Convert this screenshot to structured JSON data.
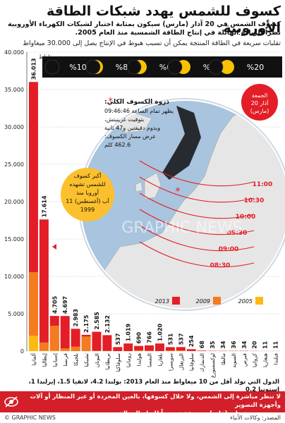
{
  "header": {
    "title": "كسوف للشمس يهدد شبكات الطاقة الأوروبية",
    "subtitle_line1": "كسوف الشمس في 20 آذار (مارس) سيكون بمثابة اختبار لشبكات الكهرباء الأوروبية",
    "subtitle_line2": "نظراً للزيادة الهائلة في إنتاج الطاقة الشمسية منذ العام 2005.",
    "subtitle_line3": "تقلبات سريعة في الطاقة المنتجة يمكن أن تسبب هبوط في الإنتاج يصل إلى 30.000 ميغاواط"
  },
  "eclipse_phases": [
    "%100",
    "%80",
    "%60",
    "%40",
    "%20"
  ],
  "map": {
    "friday_label": "الجمعة 20 آذار (مارس)",
    "peak_title": "ذروة الكسوف الكلي:",
    "peak_line1": "يظهر تمام الساعة 09:46:46",
    "peak_line2": "بتوقيت غرينيتش،",
    "peak_line3": "وبدوم دقيقتين و47 ثانية",
    "peak_line4": "عرض مسار الكسوف:",
    "peak_line5": "462.6 كلم",
    "largest_line1": "أكبر كسوف",
    "largest_line2": "للشمس تشهده",
    "largest_line3": "أوروبا منذ",
    "largest_line4": "11 آب (أغسطس)",
    "largest_line5": "1999",
    "times": [
      "11:00",
      "10:30",
      "10:00",
      "09:30",
      "09:00",
      "08:30"
    ],
    "watermark": "GRAPHIC NEWS"
  },
  "colors": {
    "bar_2013": "#e31e26",
    "bar_2009": "#f47b20",
    "bar_2005": "#fdb913",
    "sea": "#a9c4de",
    "land": "#e6e6e6",
    "phase_bg": "#111111",
    "sun": "#f9c200"
  },
  "chart_data": {
    "type": "bar",
    "unit_label": "ميغاواط",
    "ylim": [
      0,
      40000
    ],
    "yticks": [
      "0",
      "5.000",
      "10.000",
      "15.000",
      "20.000",
      "25.000",
      "30.000",
      "35.000",
      "40.000"
    ],
    "categories": [
      "ألمانيا",
      "إيطاليا",
      "إسبانيا",
      "فرنسا",
      "بلجيكا",
      "تشيكيا",
      "اليونان",
      "بريطانيا",
      "سلوفاكيا",
      "رومانيا",
      "هولندا",
      "النمسا",
      "بلغاريا",
      "سويسرا",
      "البرتغال",
      "سلوفانيا",
      "الدنمارك",
      "لوكسمبورغ",
      "مالطا",
      "السويد",
      "قبرص",
      "كرواتيا",
      "هنغاريا",
      "فنلندا"
    ],
    "value_labels": [
      "36.013",
      "17.614",
      "4.705",
      "4.697",
      "2.983",
      "2.175",
      "2.585",
      "2.132",
      "537",
      "1.019",
      "690",
      "766",
      "1.020",
      "531",
      "537",
      "254",
      "68",
      "35",
      "34",
      "36",
      "34",
      "20",
      "11",
      "11"
    ],
    "series": [
      {
        "name": "2013",
        "values": [
          36013,
          17614,
          4705,
          4697,
          2983,
          2175,
          2585,
          2132,
          537,
          1019,
          690,
          766,
          1020,
          531,
          537,
          254,
          68,
          35,
          34,
          36,
          34,
          20,
          11,
          11
        ]
      },
      {
        "name": "2009",
        "values": [
          10566,
          1157,
          3400,
          370,
          600,
          1960,
          50,
          30,
          0,
          0,
          70,
          50,
          6,
          70,
          100,
          10,
          5,
          2,
          1,
          8,
          3,
          0,
          1,
          8
        ]
      },
      {
        "name": "2005",
        "values": [
          2056,
          50,
          50,
          30,
          4,
          0,
          5,
          10,
          0,
          0,
          50,
          20,
          0,
          25,
          3,
          0,
          3,
          2,
          0,
          4,
          1,
          0,
          0,
          4
        ]
      }
    ],
    "legend": [
      "2013",
      "2009",
      "2005"
    ]
  },
  "footer": {
    "note": "الدول التي تولد أقل من 10 ميغاواط منذ العام 2013: بولندا 4.2، لاتفيا 1.5، إيرلندا 1، إستونيا 0.2",
    "warning_line1": "لا تنظر مباشرة إلى الشمس، ولا خلال كسوفها، بالعين المجردة أو عبر المنظار أو آلات وأجهزة التصوير",
    "warning_line2": "من دون مرشحات (فلتر) مصنوعة خصيصاً للنظر إلى الشمس",
    "source": "المصدر: وكالات الأنباء",
    "credit": "© GRAPHIC NEWS"
  }
}
